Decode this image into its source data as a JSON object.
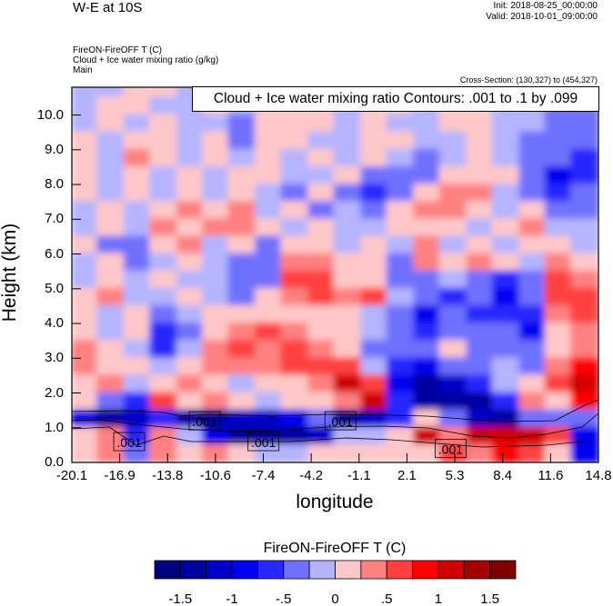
{
  "header": {
    "title": "W-E at 10S",
    "init": "Init: 2018-08-25_00:00:00",
    "valid": "Valid: 2018-10-01_09:00:00",
    "field1": "FireON-FireOFF T   (C)",
    "field2": "Cloud + Ice water mixing ratio   (g/kg)",
    "field3": "Main",
    "cross_section": "Cross-Section: (130,327) to (454,327)"
  },
  "chart_data": {
    "type": "heatmap",
    "xlabel": "longitude",
    "ylabel": "Height (km)",
    "xlim": [
      -20.1,
      14.8
    ],
    "ylim": [
      0,
      10.8
    ],
    "xticks": [
      "-20.1",
      "-16.9",
      "-13.8",
      "-10.6",
      "-7.4",
      "-4.2",
      "-1.1",
      "2.1",
      "5.3",
      "8.4",
      "11.6",
      "14.8"
    ],
    "yticks": [
      "0.0",
      "1.0",
      "2.0",
      "3.0",
      "4.0",
      "5.0",
      "6.0",
      "7.0",
      "8.0",
      "9.0",
      "10.0"
    ],
    "contour_title": "Cloud + Ice water mixing ratio Contours: .001 to .1 by .099",
    "contour_labels": [
      {
        "text": ".001",
        "lon": -16.3,
        "h": 0.6
      },
      {
        "text": ".001",
        "lon": -11.3,
        "h": 1.2
      },
      {
        "text": ".001",
        "lon": -7.4,
        "h": 0.6
      },
      {
        "text": ".001",
        "lon": -2.3,
        "h": 1.2
      },
      {
        "text": ".001",
        "lon": 5.0,
        "h": 0.4
      }
    ],
    "grid_lon_centers": [
      -19.2,
      -17.5,
      -15.7,
      -14.0,
      -12.2,
      -10.5,
      -8.8,
      -7.0,
      -5.3,
      -3.5,
      -1.8,
      0.0,
      1.7,
      3.5,
      5.2,
      7.0,
      8.7,
      10.5,
      12.2,
      13.9
    ],
    "grid_heights": [
      10.75,
      10.25,
      9.75,
      9.25,
      8.75,
      8.25,
      7.75,
      7.25,
      6.75,
      6.25,
      5.75,
      5.25,
      4.75,
      4.25,
      3.75,
      3.25,
      2.75,
      2.25,
      1.75,
      1.25,
      0.75,
      0.25
    ],
    "values": [
      [
        -0.1,
        -0.1,
        0.1,
        0.1,
        -0.1,
        -0.1,
        -0.1,
        -0.1,
        0.1,
        0.1,
        -0.1,
        -0.1,
        0.1,
        0.1,
        0.1,
        0.1,
        -0.1,
        -0.1,
        -0.1,
        -0.3
      ],
      [
        -0.1,
        0.1,
        0.1,
        -0.1,
        -0.1,
        0.1,
        -0.1,
        0.1,
        0.1,
        0.1,
        -0.1,
        0.1,
        0.1,
        -0.1,
        0.1,
        0.1,
        -0.1,
        -0.1,
        -0.4,
        -0.3
      ],
      [
        -0.1,
        0.1,
        -0.1,
        0.1,
        -0.1,
        -0.1,
        -0.4,
        0.1,
        0.1,
        0.1,
        -0.1,
        0.1,
        -0.1,
        -0.1,
        0.1,
        0.1,
        -0.1,
        -0.1,
        -0.3,
        -0.4
      ],
      [
        0.1,
        -0.1,
        0.1,
        0.1,
        -0.1,
        0.1,
        -0.4,
        0.1,
        0.1,
        -0.1,
        -0.1,
        0.1,
        0.1,
        -0.1,
        -0.1,
        0.1,
        -0.1,
        -0.3,
        -0.4,
        -0.4
      ],
      [
        0.1,
        -0.1,
        0.4,
        0.1,
        -0.1,
        0.1,
        -0.1,
        0.1,
        -0.1,
        0.1,
        -0.1,
        0.1,
        -0.1,
        -0.3,
        -0.1,
        0.1,
        -0.1,
        -0.3,
        -0.4,
        -0.6
      ],
      [
        0.1,
        -0.1,
        0.1,
        -0.1,
        0.1,
        -0.1,
        0.1,
        0.1,
        -0.1,
        -0.1,
        0.1,
        -0.3,
        -0.4,
        -0.3,
        0.1,
        0.1,
        0.1,
        -0.4,
        -0.9,
        -0.7
      ],
      [
        0.1,
        -0.1,
        0.1,
        -0.1,
        0.1,
        -0.1,
        0.1,
        -0.1,
        -0.3,
        0.1,
        -0.4,
        -0.7,
        -0.3,
        0.1,
        0.4,
        0.4,
        -0.1,
        -0.3,
        -0.6,
        -0.4
      ],
      [
        -0.1,
        0.1,
        -0.1,
        0.1,
        0.4,
        0.1,
        0.4,
        -0.1,
        0.1,
        -0.3,
        -0.1,
        -0.4,
        0.1,
        0.4,
        0.4,
        0.1,
        -0.1,
        0.1,
        -0.3,
        -0.3
      ],
      [
        -0.1,
        0.1,
        -0.1,
        0.4,
        0.1,
        0.4,
        0.4,
        0.1,
        -0.1,
        0.1,
        -0.1,
        -0.1,
        0.1,
        0.1,
        0.1,
        -0.1,
        0.1,
        0.4,
        -0.1,
        -0.1
      ],
      [
        0.1,
        -0.3,
        -0.3,
        0.1,
        0.4,
        -0.1,
        0.1,
        -0.3,
        0.1,
        0.1,
        -0.1,
        0.1,
        -0.1,
        0.4,
        -0.1,
        0.1,
        -0.1,
        0.1,
        0.1,
        -0.1
      ],
      [
        -0.1,
        0.1,
        -0.3,
        -0.1,
        0.1,
        -0.1,
        -0.3,
        -0.4,
        0.4,
        0.4,
        0.1,
        0.1,
        -0.3,
        0.4,
        0.1,
        0.4,
        0.1,
        -0.1,
        0.4,
        0.1
      ],
      [
        -0.1,
        0.1,
        -0.1,
        0.1,
        -0.1,
        -0.1,
        -0.4,
        -0.4,
        0.6,
        0.6,
        0.1,
        0.1,
        -0.4,
        -0.3,
        -0.1,
        -0.4,
        -0.6,
        -0.3,
        0.6,
        0.4
      ],
      [
        0.1,
        0.4,
        -0.1,
        -0.1,
        0.1,
        -0.1,
        -0.3,
        0.1,
        0.4,
        0.6,
        0.4,
        0.6,
        -0.1,
        -0.4,
        -0.7,
        -0.4,
        -0.9,
        -0.4,
        0.6,
        0.7
      ],
      [
        0.1,
        -0.1,
        0.1,
        -0.4,
        -0.1,
        0.1,
        0.1,
        0.1,
        0.1,
        0.1,
        0.1,
        -0.1,
        -0.4,
        -0.9,
        -0.4,
        -0.6,
        -0.6,
        -0.6,
        0.4,
        0.6
      ],
      [
        0.1,
        -0.1,
        0.1,
        -0.6,
        -0.3,
        0.1,
        0.4,
        0.6,
        0.4,
        0.1,
        0.1,
        -0.1,
        -0.3,
        -0.6,
        -0.4,
        -0.4,
        -0.3,
        -0.9,
        0.1,
        0.4
      ],
      [
        0.4,
        0.1,
        -0.1,
        -0.6,
        -0.1,
        0.4,
        0.7,
        0.4,
        0.7,
        0.4,
        0.1,
        -0.3,
        -0.3,
        -0.4,
        0.1,
        -0.3,
        -0.4,
        -0.4,
        0.1,
        0.4
      ],
      [
        0.4,
        0.1,
        0.1,
        -0.1,
        0.1,
        0.4,
        0.4,
        0.4,
        0.6,
        0.7,
        0.6,
        -0.1,
        -0.6,
        -0.9,
        -0.4,
        -0.3,
        -0.1,
        -0.3,
        0.4,
        0.9
      ],
      [
        0.1,
        0.4,
        -0.1,
        0.1,
        0.4,
        0.1,
        -0.1,
        0.1,
        0.1,
        0.4,
        1.1,
        0.6,
        -0.9,
        -1.3,
        -1.1,
        -0.6,
        -0.1,
        0.1,
        0.6,
        1.0
      ],
      [
        0.1,
        -0.4,
        -0.7,
        0.6,
        0.1,
        0.4,
        0.1,
        -0.1,
        0.1,
        0.1,
        0.4,
        1.2,
        -0.6,
        -1.3,
        -1.4,
        -1.3,
        -0.6,
        0.4,
        0.1,
        0.9
      ],
      [
        -1.0,
        -1.3,
        -1.1,
        -0.6,
        -1.4,
        -1.3,
        -1.1,
        -1.1,
        -0.9,
        -0.4,
        -1.3,
        -1.2,
        -0.6,
        0.1,
        -0.4,
        -1.2,
        -1.5,
        -0.4,
        -0.3,
        -0.4
      ],
      [
        0.1,
        0.4,
        -0.7,
        0.4,
        -0.1,
        -1.0,
        -1.4,
        -1.5,
        -1.4,
        -1.1,
        -0.1,
        -0.1,
        0.1,
        1.0,
        0.4,
        1.0,
        1.2,
        1.1,
        0.7,
        -1.0
      ],
      [
        0.1,
        0.4,
        -0.4,
        0.4,
        0.1,
        0.4,
        0.1,
        -0.1,
        -0.1,
        0.1,
        0.1,
        0.1,
        0.1,
        0.1,
        0.6,
        0.4,
        0.9,
        0.7,
        0.1,
        -0.9
      ]
    ],
    "colorbar": {
      "title": "FireON-FireOFF T  (C)",
      "levels": [
        -1.5,
        -1.25,
        -1,
        -0.75,
        -0.5,
        -0.25,
        0,
        0.25,
        0.5,
        0.75,
        1,
        1.25,
        1.5
      ],
      "tick_labels": [
        "-1.5",
        "-1",
        "-.5",
        "0",
        ".5",
        "1",
        "1.5"
      ],
      "colors": [
        "#000080",
        "#0000a0",
        "#0000c8",
        "#0000f0",
        "#2828ff",
        "#7070ff",
        "#b4b4ff",
        "#ffc8c8",
        "#ff8080",
        "#ff4040",
        "#ff0000",
        "#d00000",
        "#a80000",
        "#800000"
      ]
    }
  }
}
